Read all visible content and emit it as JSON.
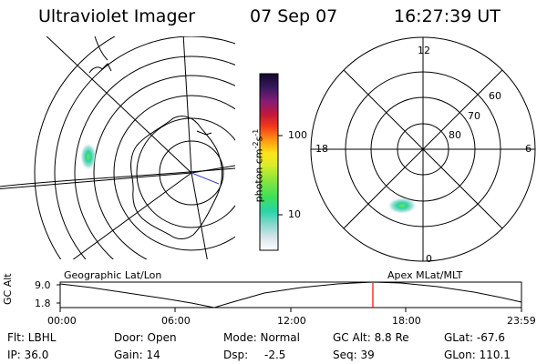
{
  "header": {
    "title": "Ultraviolet Imager",
    "date": "07 Sep 07",
    "time": "16:27:39 UT"
  },
  "colorbar": {
    "label": "photon cm",
    "label_sup1": "-2",
    "label_mid": "s",
    "label_sup2": "-1",
    "tick_100": "100",
    "tick_10": "10"
  },
  "polar_plot": {
    "mlt_12": "12",
    "mlt_18": "18",
    "mlt_6": "6",
    "mlt_0": "0",
    "lat_60": "60",
    "lat_70": "70",
    "lat_80": "80"
  },
  "timeline": {
    "left_label": "Geographic Lat/Lon",
    "right_label": "Apex MLat/MLT",
    "y_axis_label": "GC Alt",
    "y_max": "9.0",
    "y_min": "1.8",
    "ticks": [
      "00:00",
      "06:00",
      "12:00",
      "18:00",
      "23:59"
    ]
  },
  "info": {
    "filter": "Flt: LBHL",
    "ip": "IP: 36.0",
    "door": "Door: Open",
    "gain": "Gain: 14",
    "mode": "Mode: Normal",
    "dsp_label": "Dsp:",
    "dsp_value": "-2.5",
    "gc_alt": "GC Alt: 8.8 Re",
    "seq": "Seq: 39",
    "glat": "GLat: -67.6",
    "glon": "GLon: 110.1"
  },
  "colors": {
    "marker": "#ff0000",
    "line": "#000000"
  }
}
